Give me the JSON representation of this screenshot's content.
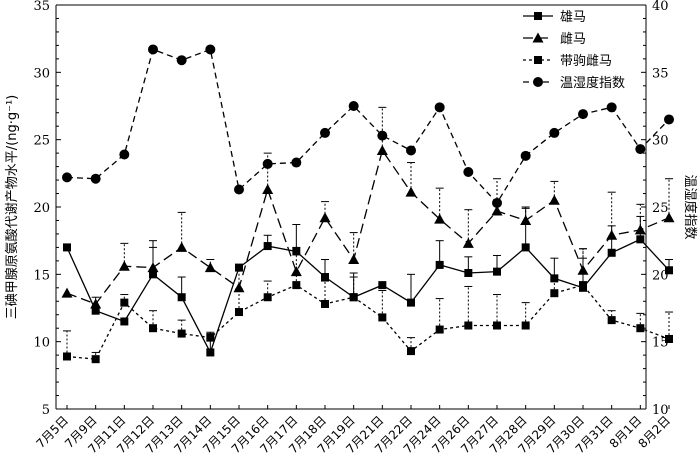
{
  "chart_data": {
    "type": "line",
    "categories": [
      "7月5日",
      "7月9日",
      "7月11日",
      "7月12日",
      "7月13日",
      "7月14日",
      "7月15日",
      "7月16日",
      "7月17日",
      "7月18日",
      "7月19日",
      "7月21日",
      "7月22日",
      "7月24日",
      "7月26日",
      "7月27日",
      "7月28日",
      "7月29日",
      "7月30日",
      "7月31日",
      "8月1日",
      "8月2日"
    ],
    "ylabel": "三碘甲腺原氨酸代谢产物水平/(ng·g⁻¹)",
    "y2label": "温湿度指数",
    "ylim": [
      5,
      35
    ],
    "y2lim": [
      10,
      40
    ],
    "yticks": [
      5,
      10,
      15,
      20,
      25,
      30,
      35
    ],
    "y2ticks": [
      10,
      15,
      20,
      25,
      30,
      35,
      40
    ],
    "grid": false,
    "legend_position": "top-right",
    "series": [
      {
        "name": "雄马",
        "axis": "left",
        "line_style": "solid",
        "marker": "square",
        "values": [
          17.0,
          12.3,
          11.5,
          15.0,
          13.3,
          9.2,
          15.5,
          17.1,
          16.7,
          14.8,
          13.3,
          14.2,
          12.9,
          15.7,
          15.1,
          15.2,
          17.0,
          14.7,
          14.0,
          16.6,
          17.6,
          15.3
        ],
        "errors": [
          0,
          1.0,
          0,
          2.5,
          1.5,
          1.4,
          0,
          0.8,
          2.0,
          1.3,
          1.8,
          0,
          2.1,
          1.8,
          1.2,
          1.2,
          3.0,
          1.5,
          2.2,
          2.0,
          1.7,
          0.8
        ]
      },
      {
        "name": "雌马",
        "axis": "left",
        "line_style": "long-dash",
        "marker": "triangle",
        "values": [
          13.6,
          12.8,
          15.6,
          15.5,
          17.0,
          15.5,
          14.0,
          21.3,
          15.2,
          19.2,
          16.1,
          24.2,
          21.1,
          19.1,
          17.3,
          19.7,
          19.0,
          20.5,
          15.3,
          17.9,
          18.3,
          19.2
        ],
        "errors": [
          0,
          0,
          1.7,
          1.5,
          2.6,
          0.6,
          1.5,
          2.7,
          0,
          1.2,
          2.0,
          3.2,
          2.2,
          2.3,
          2.5,
          2.4,
          0.9,
          1.4,
          1.6,
          3.2,
          1.9,
          2.9
        ]
      },
      {
        "name": "带驹雌马",
        "axis": "left",
        "line_style": "short-dash",
        "marker": "square",
        "values": [
          8.9,
          8.7,
          12.9,
          11.0,
          10.6,
          10.3,
          12.2,
          13.3,
          14.2,
          12.8,
          13.3,
          11.8,
          9.3,
          10.9,
          11.2,
          11.2,
          11.2,
          13.6,
          14.2,
          11.6,
          11.0,
          10.2
        ],
        "errors": [
          1.9,
          0.5,
          0.6,
          1.3,
          1.0,
          0.4,
          1.7,
          1.2,
          2.8,
          1.7,
          1.5,
          2.0,
          1.0,
          2.3,
          2.9,
          2.3,
          1.7,
          1.0,
          2.7,
          0.7,
          1.1,
          2.0
        ]
      },
      {
        "name": "温湿度指数",
        "axis": "right",
        "line_style": "dash",
        "marker": "circle",
        "values": [
          27.2,
          27.1,
          28.9,
          36.7,
          35.9,
          36.7,
          26.3,
          28.2,
          28.3,
          30.5,
          32.5,
          30.3,
          29.2,
          32.4,
          27.6,
          25.3,
          28.8,
          30.5,
          31.9,
          32.4,
          29.3,
          31.5
        ]
      }
    ]
  }
}
